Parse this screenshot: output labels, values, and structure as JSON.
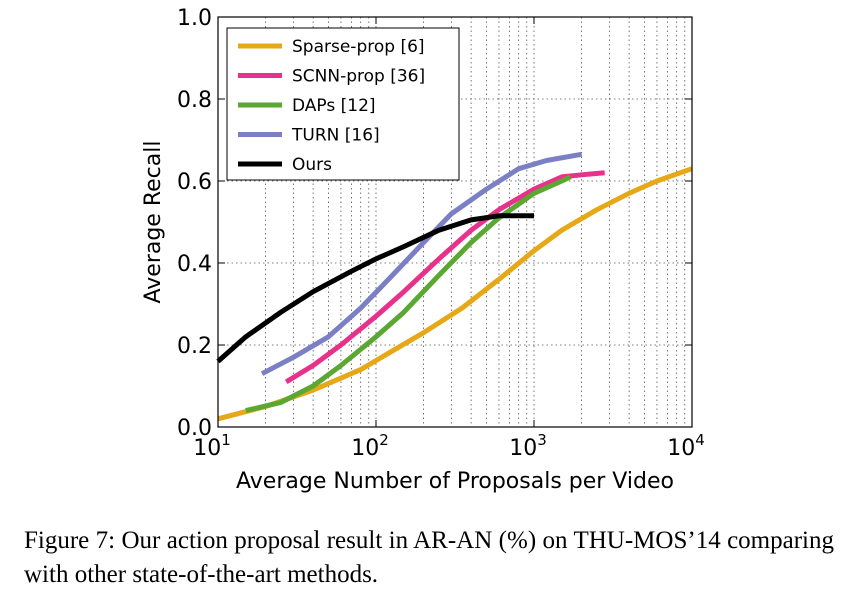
{
  "chart_data": {
    "type": "line",
    "xlabel": "Average Number of Proposals per Video",
    "ylabel": "Average Recall",
    "x_scale": "log",
    "xlim": [
      10,
      10000
    ],
    "ylim": [
      0.0,
      1.0
    ],
    "x_ticks": [
      {
        "value": 10,
        "base": "10",
        "exp": "1"
      },
      {
        "value": 100,
        "base": "10",
        "exp": "2"
      },
      {
        "value": 1000,
        "base": "10",
        "exp": "3"
      },
      {
        "value": 10000,
        "base": "10",
        "exp": "4"
      }
    ],
    "y_ticks": [
      {
        "value": 0.0,
        "label": "0.0"
      },
      {
        "value": 0.2,
        "label": "0.2"
      },
      {
        "value": 0.4,
        "label": "0.4"
      },
      {
        "value": 0.6,
        "label": "0.6"
      },
      {
        "value": 0.8,
        "label": "0.8"
      },
      {
        "value": 1.0,
        "label": "1.0"
      }
    ],
    "grid": true,
    "legend_position": "top-left",
    "series": [
      {
        "name": "Sparse-prop [6]",
        "color": "#e6a817",
        "x": [
          10,
          20,
          40,
          80,
          120,
          200,
          350,
          600,
          1000,
          1500,
          2500,
          4000,
          6000,
          10000
        ],
        "y": [
          0.02,
          0.05,
          0.09,
          0.14,
          0.18,
          0.23,
          0.29,
          0.36,
          0.43,
          0.48,
          0.53,
          0.57,
          0.6,
          0.63
        ]
      },
      {
        "name": "SCNN-prop [36]",
        "color": "#e8318a",
        "x": [
          27,
          40,
          60,
          100,
          150,
          250,
          400,
          600,
          1000,
          1500,
          2000,
          2800
        ],
        "y": [
          0.11,
          0.15,
          0.2,
          0.27,
          0.33,
          0.41,
          0.48,
          0.53,
          0.58,
          0.61,
          0.615,
          0.62
        ]
      },
      {
        "name": "DAPs [12]",
        "color": "#5aa832",
        "x": [
          15,
          25,
          40,
          60,
          100,
          150,
          250,
          400,
          600,
          1000,
          1500,
          1700
        ],
        "y": [
          0.04,
          0.06,
          0.1,
          0.15,
          0.22,
          0.28,
          0.37,
          0.45,
          0.51,
          0.57,
          0.6,
          0.61
        ]
      },
      {
        "name": "TURN [16]",
        "color": "#7b7fc4",
        "x": [
          19,
          30,
          50,
          80,
          120,
          200,
          300,
          500,
          800,
          1200,
          2000
        ],
        "y": [
          0.13,
          0.17,
          0.22,
          0.29,
          0.36,
          0.45,
          0.52,
          0.58,
          0.63,
          0.65,
          0.665
        ]
      },
      {
        "name": "Ours",
        "color": "#000000",
        "x": [
          10,
          15,
          25,
          40,
          70,
          100,
          150,
          250,
          400,
          600,
          1000
        ],
        "y": [
          0.16,
          0.22,
          0.28,
          0.33,
          0.38,
          0.41,
          0.44,
          0.48,
          0.505,
          0.515,
          0.515
        ]
      }
    ]
  },
  "caption": {
    "text": "Figure 7:  Our action proposal result in AR-AN (%) on THU-MOS’14 comparing with other state-of-the-art methods."
  }
}
